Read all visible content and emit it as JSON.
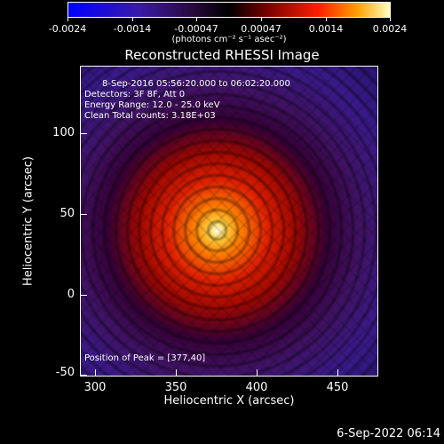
{
  "colorbar": {
    "tick_labels": [
      "-0.0024",
      "-0.0014",
      "-0.00047",
      "0.00047",
      "0.0014",
      "0.0024"
    ],
    "units": "(photons cm⁻² s⁻¹ asec⁻²)"
  },
  "title": "Reconstructed RHESSI Image",
  "annotations": {
    "time_range": "8-Sep-2016 05:56:20.000 to 06:02:20.000",
    "detectors": "Detectors: 3F 8F, Att 0",
    "energy": "Energy Range: 12.0 - 25.0 keV",
    "clean": "Clean     Total counts: 3.18E+03",
    "peak": "Position of Peak = [377,40]"
  },
  "axes": {
    "x_title": "Heliocentric X (arcsec)",
    "y_title": "Heliocentric Y (arcsec)",
    "x_ticks": [
      "300",
      "350",
      "400",
      "450"
    ],
    "y_ticks": [
      "100",
      "50",
      "0",
      "-50"
    ],
    "x_range": [
      282,
      475
    ],
    "y_range": [
      -52,
      143
    ]
  },
  "footer": "6-Sep-2022 06:14"
}
